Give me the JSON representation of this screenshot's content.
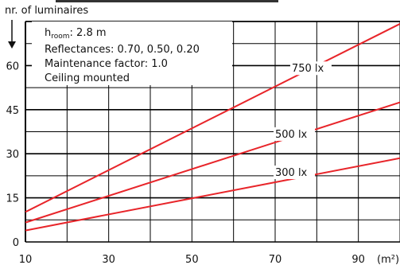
{
  "chart_data": {
    "type": "line",
    "title": "",
    "ylabel": "nr. of luminaires",
    "xlabel": "(m²)",
    "xlim": [
      10,
      100
    ],
    "ylim": [
      0,
      75
    ],
    "x_ticks": [
      10,
      30,
      50,
      70,
      90
    ],
    "y_ticks": [
      0,
      15,
      30,
      45,
      60
    ],
    "grid": true,
    "annotations": {
      "h_room_symbol": "h",
      "h_room_sub": "room",
      "h_room_value": ": 2.8 m",
      "reflectances": "Reflectances: 0.70, 0.50, 0.20",
      "maintenance": "Maintenance factor: 1.0",
      "mounting": "Ceiling mounted"
    },
    "colors": {
      "line": "#e8252a",
      "grid": "#000000"
    },
    "series": [
      {
        "name": "750 lx",
        "x": [
          10,
          100
        ],
        "y": [
          10.2,
          74.2
        ]
      },
      {
        "name": "500 lx",
        "x": [
          10,
          100
        ],
        "y": [
          6.6,
          47.5
        ]
      },
      {
        "name": "300 lx",
        "x": [
          10,
          100
        ],
        "y": [
          3.9,
          28.5
        ]
      }
    ]
  }
}
